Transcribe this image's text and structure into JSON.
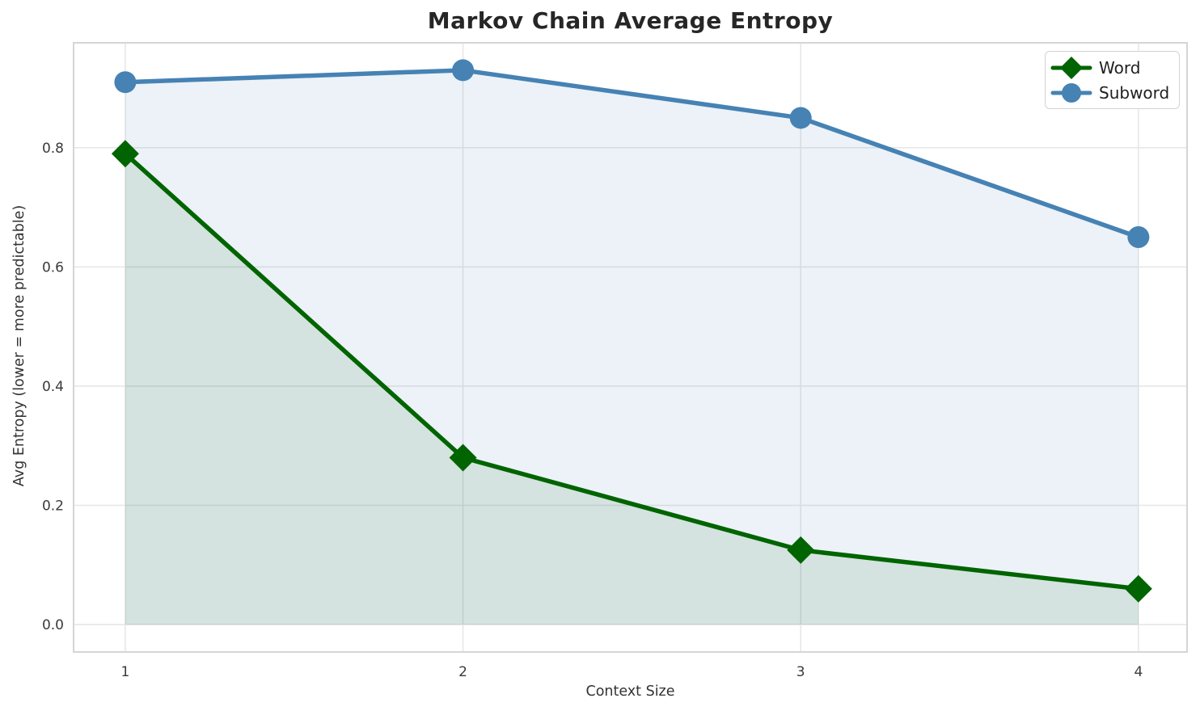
{
  "title": "Markov Chain Average Entropy",
  "chart_data": {
    "type": "line",
    "title": "Markov Chain Average Entropy",
    "xlabel": "Context Size",
    "ylabel": "Avg Entropy (lower = more predictable)",
    "x": [
      1,
      2,
      3,
      4
    ],
    "xtick_labels": [
      "1",
      "2",
      "3",
      "4"
    ],
    "ytick_values": [
      0.0,
      0.2,
      0.4,
      0.6,
      0.8
    ],
    "ytick_labels": [
      "0.0",
      "0.2",
      "0.4",
      "0.6",
      "0.8"
    ],
    "xlim": [
      0.847,
      4.144
    ],
    "ylim": [
      -0.046,
      0.976
    ],
    "grid": true,
    "legend_position": "upper right",
    "fill_to_zero": true,
    "fill_opacity": 0.1,
    "series": [
      {
        "name": "Word",
        "color": "#006400",
        "marker": "diamond",
        "values": [
          0.79,
          0.28,
          0.125,
          0.06
        ]
      },
      {
        "name": "Subword",
        "color": "#4682b4",
        "marker": "circle",
        "values": [
          0.91,
          0.93,
          0.85,
          0.65
        ]
      }
    ]
  },
  "colors": {
    "word_line": "#006400",
    "subword_line": "#4682b4",
    "grid": "#e7e7e7",
    "spine": "#d5d5d5",
    "title_text": "#262626",
    "tick_text": "#3a3a3a",
    "background": "#ffffff"
  }
}
